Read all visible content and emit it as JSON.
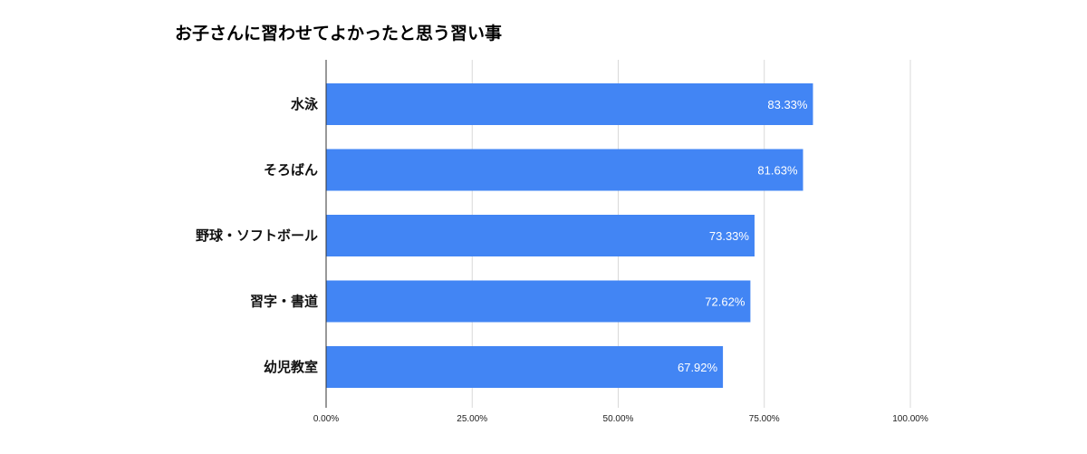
{
  "chart_data": {
    "type": "bar",
    "orientation": "horizontal",
    "title": "お子さんに習わせてよかったと思う習い事",
    "categories": [
      "水泳",
      "そろばん",
      "野球・ソフトボール",
      "習字・書道",
      "幼児教室"
    ],
    "values": [
      83.33,
      81.63,
      73.33,
      72.62,
      67.92
    ],
    "data_labels": [
      "83.33%",
      "81.63%",
      "73.33%",
      "72.62%",
      "67.92%"
    ],
    "x_ticks": [
      0,
      25,
      50,
      75,
      100
    ],
    "x_tick_labels": [
      "0.00%",
      "25.00%",
      "50.00%",
      "75.00%",
      "100.00%"
    ],
    "xlim": [
      0,
      100
    ],
    "xlabel": "",
    "ylabel": "",
    "grid": true,
    "legend": "none",
    "colors": {
      "bar": "#4285f4",
      "grid": "#d9d9d9",
      "axis": "#333333"
    }
  }
}
